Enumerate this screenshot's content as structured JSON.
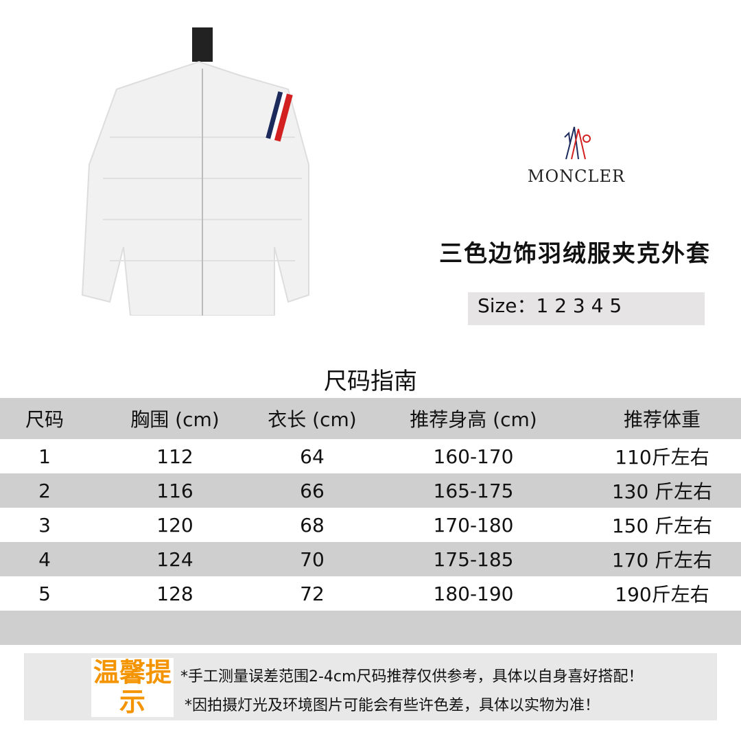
{
  "product_image": {
    "icon": "white-down-jacket-image",
    "stripe_colors": [
      "#1c2a5c",
      "#ffffff",
      "#d32020"
    ]
  },
  "brand": {
    "name": "MONCLER",
    "icon": "moncler-logo-icon"
  },
  "product_title": "三色边饰羽绒服夹克外套",
  "sizes": "Size：1 2 3 4 5",
  "guide_title": "尺码指南",
  "table": {
    "headers": [
      "尺码",
      "胸围 (cm)",
      "衣长 (cm)",
      "推荐身高 (cm)",
      "推荐体重"
    ],
    "rows": [
      [
        "1",
        "112",
        "64",
        "160-170",
        "110斤左右"
      ],
      [
        "2",
        "116",
        "66",
        "165-175",
        "130 斤左右"
      ],
      [
        "3",
        "120",
        "68",
        "170-180",
        "150 斤左右"
      ],
      [
        "4",
        "124",
        "70",
        "175-185",
        "170 斤左右"
      ],
      [
        "5",
        "128",
        "72",
        "180-190",
        "190斤左右"
      ]
    ]
  },
  "notice": {
    "label": "温馨提示",
    "label_color": "#f39400",
    "lines": [
      "*手工测量误差范围2-4cm尺码推荐仅供参考，具体以自身喜好搭配！",
      "*因拍摄灯光及环境图片可能会有些许色差，具体以实物为准！"
    ]
  }
}
